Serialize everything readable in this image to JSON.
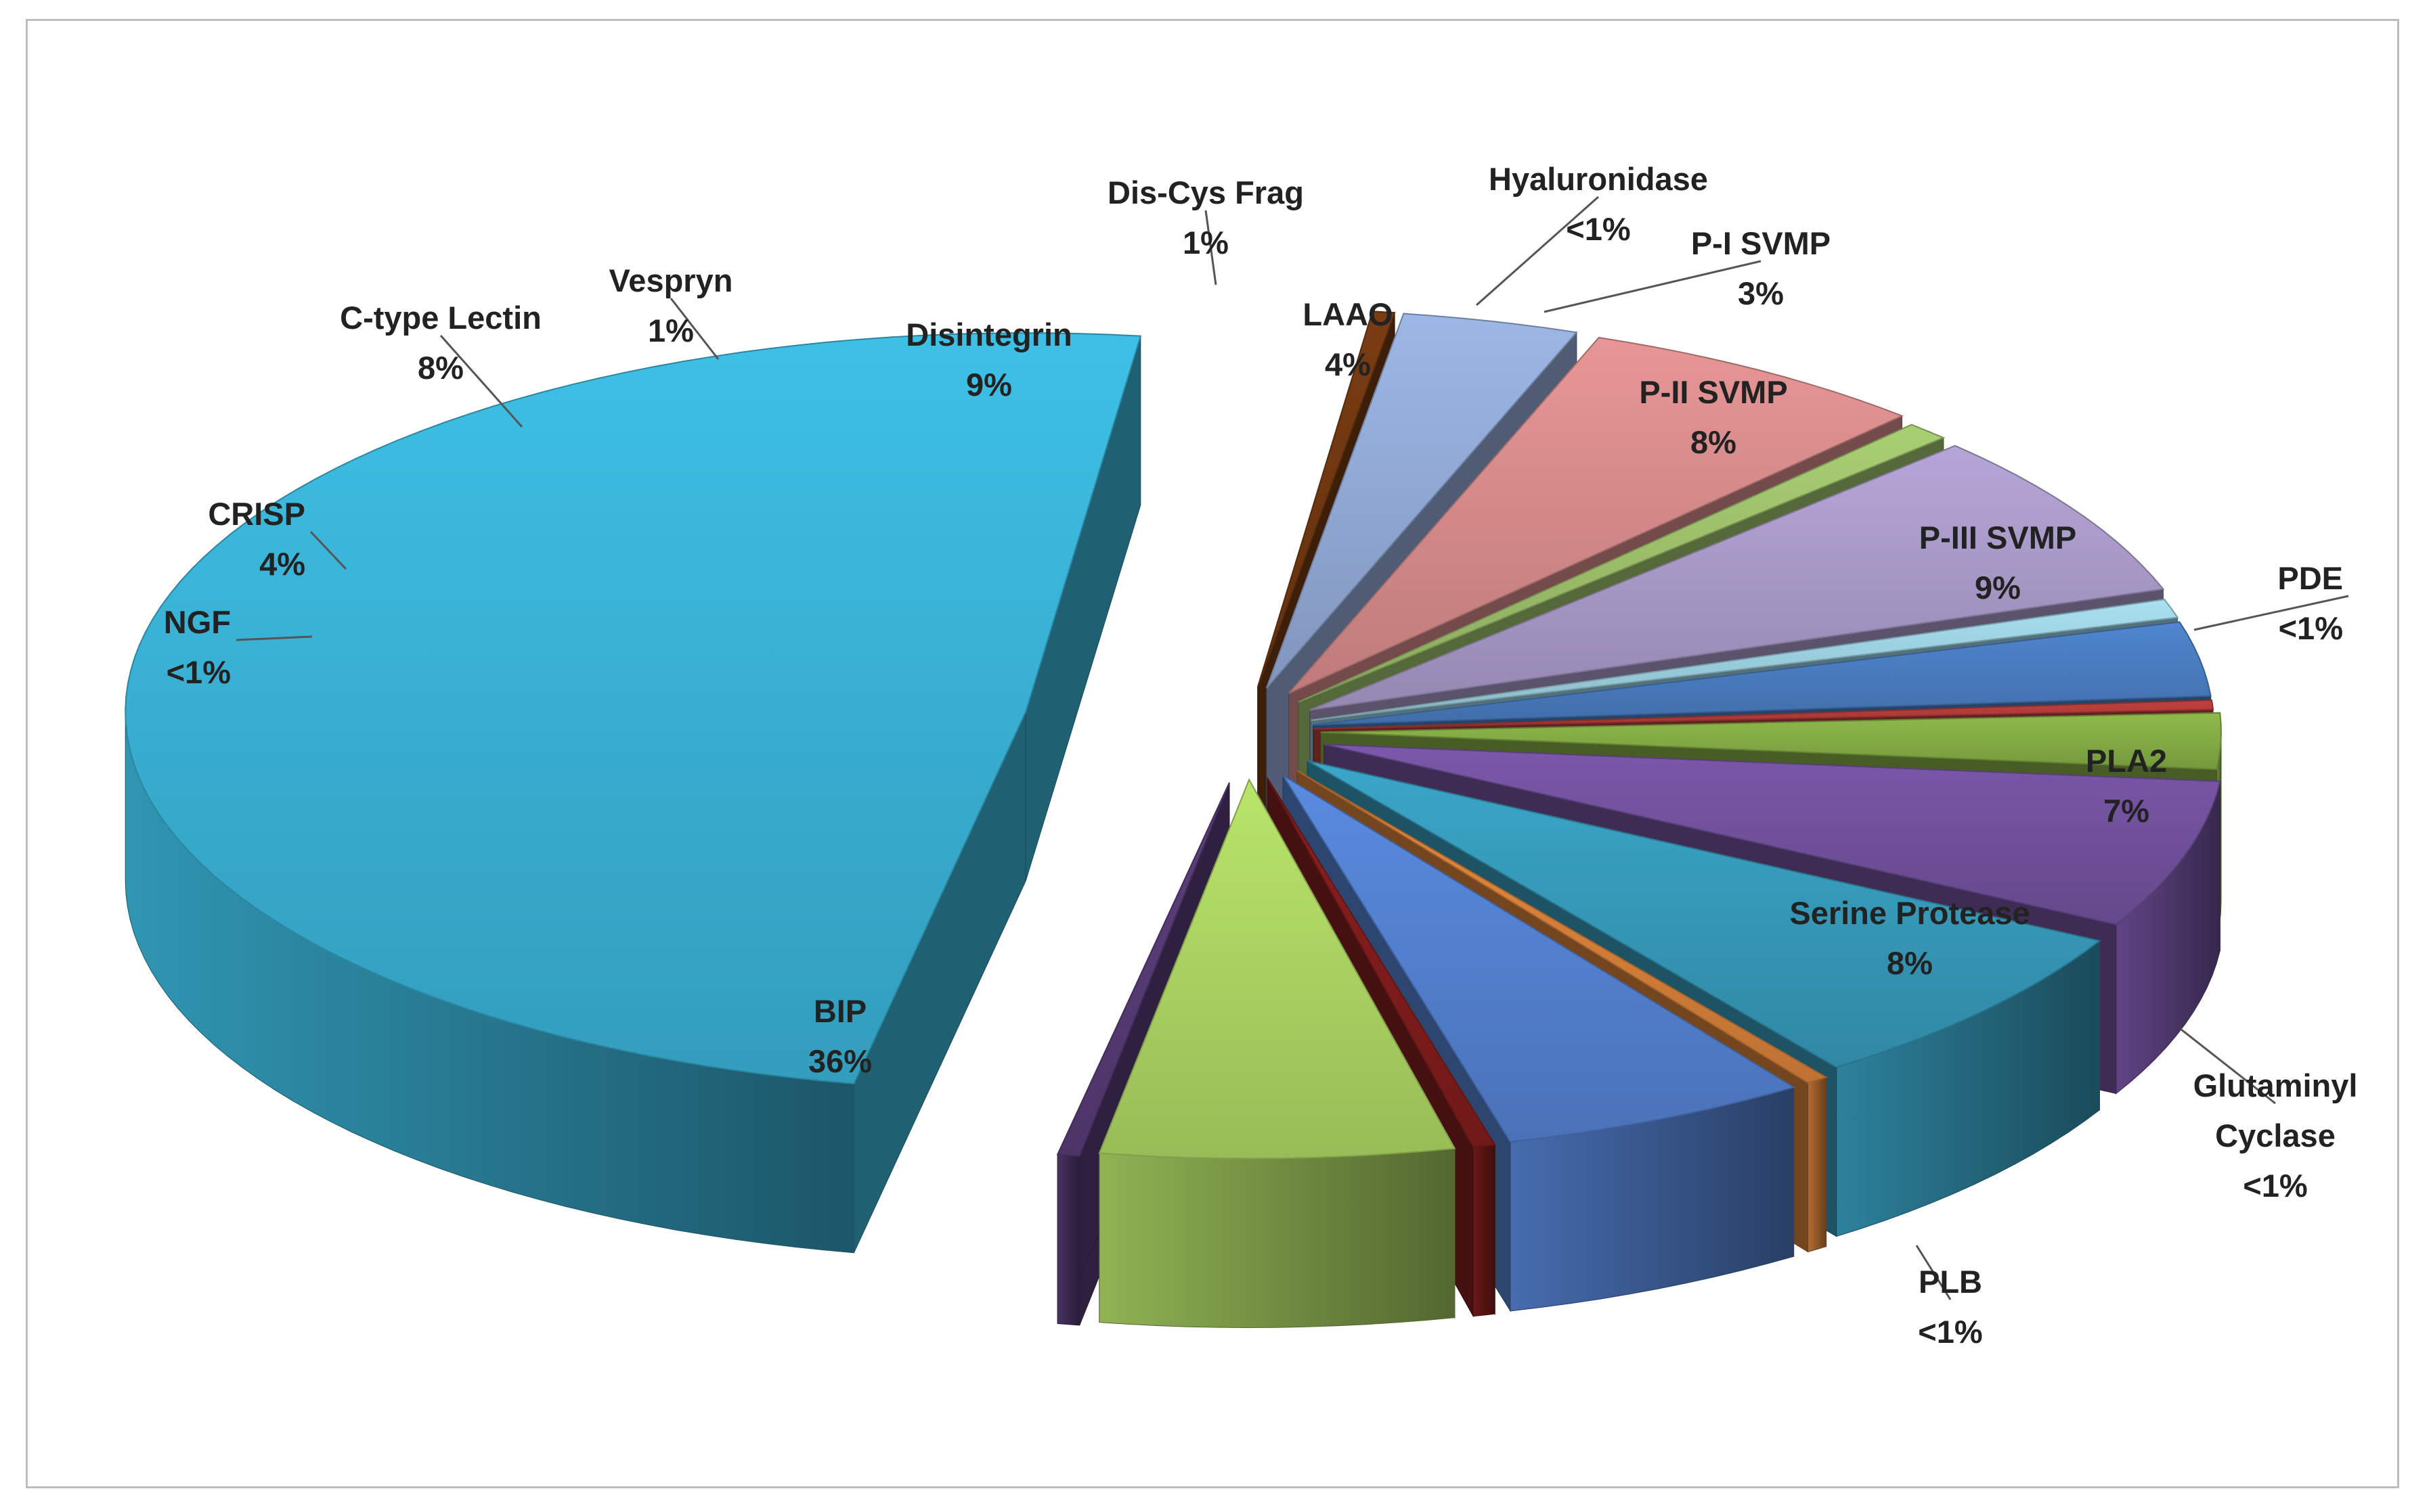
{
  "chart_data": {
    "type": "pie",
    "style": "3d-exploded",
    "title": "",
    "slices": [
      {
        "label": "BIP",
        "value_label": "36%",
        "value": 36,
        "color": "#3ec0e6"
      },
      {
        "label": "NGF",
        "value_label": "<1%",
        "value": 0.5,
        "color": "#7a3c12"
      },
      {
        "label": "CRISP",
        "value_label": "4%",
        "value": 4,
        "color": "#9db7e6"
      },
      {
        "label": "C-type Lectin",
        "value_label": "8%",
        "value": 8,
        "color": "#e89696"
      },
      {
        "label": "Vespryn",
        "value_label": "1%",
        "value": 1,
        "color": "#a9cf73"
      },
      {
        "label": "Disintegrin",
        "value_label": "9%",
        "value": 9,
        "color": "#b6a6d8"
      },
      {
        "label": "Dis-Cys Frag",
        "value_label": "1%",
        "value": 1,
        "color": "#a8e1f1"
      },
      {
        "label": "LAAO",
        "value_label": "4%",
        "value": 4,
        "color": "#4f86cf"
      },
      {
        "label": "Hyaluronidase",
        "value_label": "<1%",
        "value": 0.5,
        "color": "#c0413e"
      },
      {
        "label": "P-I SVMP",
        "value_label": "3%",
        "value": 3,
        "color": "#8fba4a"
      },
      {
        "label": "P-II SVMP",
        "value_label": "8%",
        "value": 8,
        "color": "#7b58aa"
      },
      {
        "label": "P-III SVMP",
        "value_label": "9%",
        "value": 9,
        "color": "#3aa6c8"
      },
      {
        "label": "PDE",
        "value_label": "<1%",
        "value": 0.5,
        "color": "#e88b3e"
      },
      {
        "label": "PLA2",
        "value_label": "7%",
        "value": 7,
        "color": "#5a8be0"
      },
      {
        "label": "Glutaminyl Cyclase",
        "value_label": "<1%",
        "value": 0.5,
        "color": "#8a1f1f"
      },
      {
        "label": "Serine Protease",
        "value_label": "8%",
        "value": 8,
        "color": "#b9e56a"
      },
      {
        "label": "PLB",
        "value_label": "<1%",
        "value": 0.5,
        "color": "#5e3f7e"
      }
    ]
  }
}
